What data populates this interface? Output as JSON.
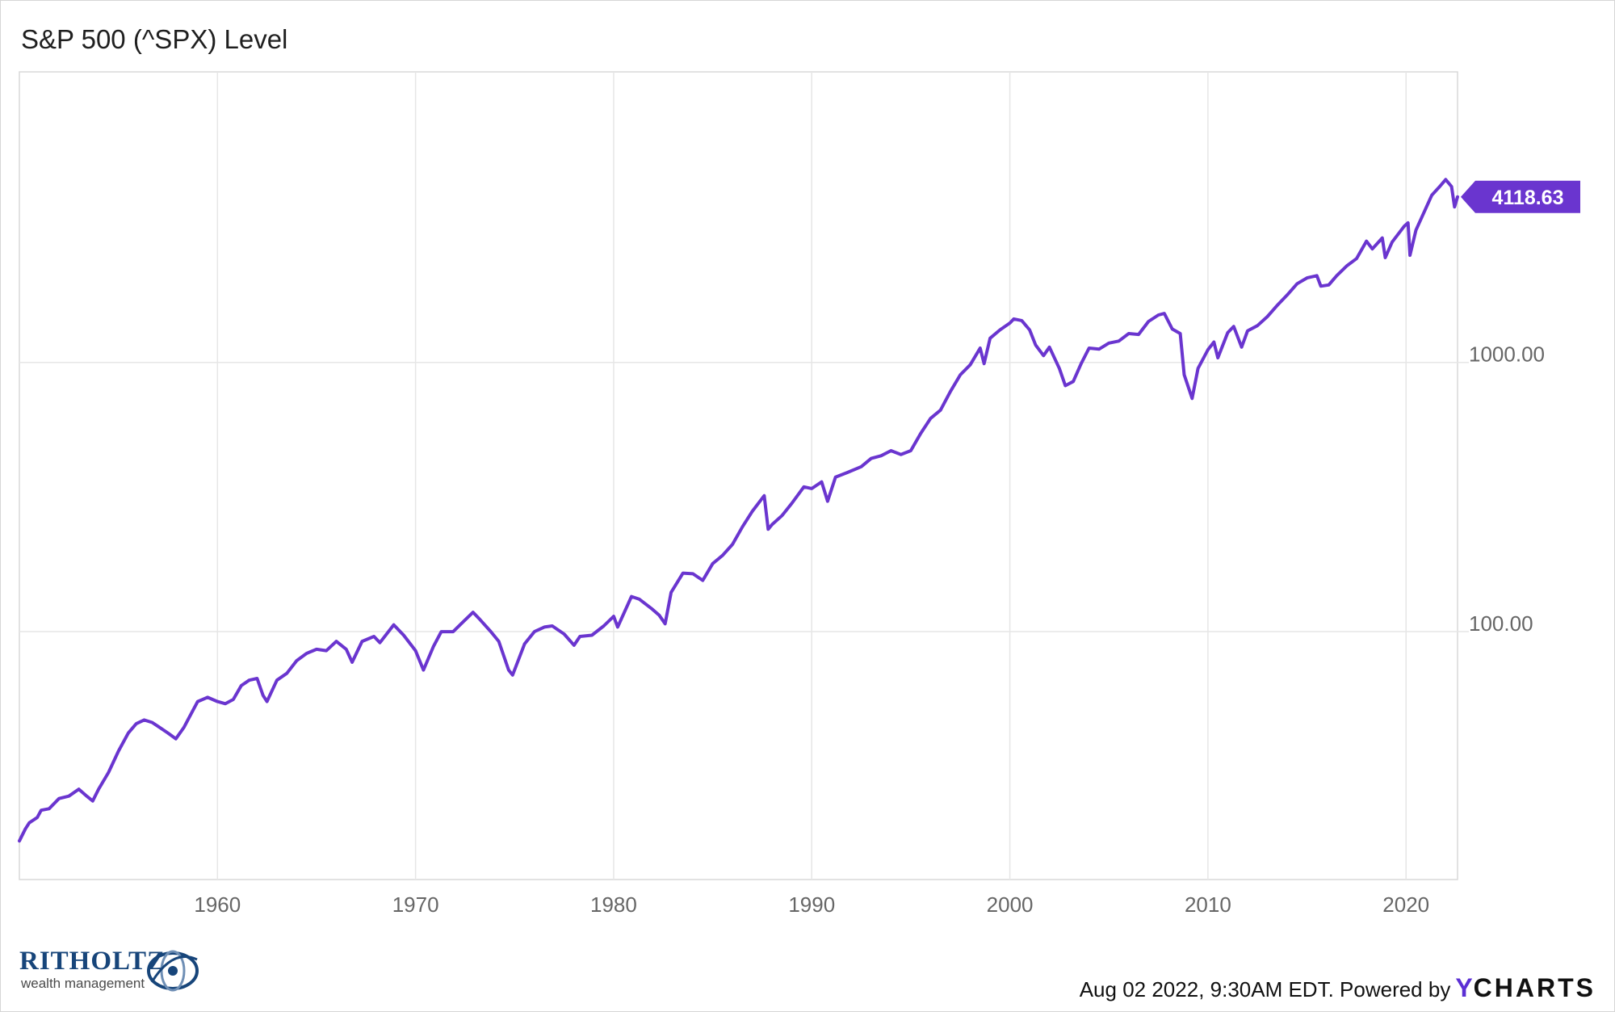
{
  "chart_data": {
    "type": "line",
    "title": "S&P 500 (^SPX) Level",
    "yscale": "log",
    "ylim": [
      12,
      12000
    ],
    "xlim": [
      1950.0,
      2022.6
    ],
    "x_ticks": [
      "1960",
      "1970",
      "1980",
      "1990",
      "2000",
      "2010",
      "2020"
    ],
    "y_ticks": [
      {
        "value": 100,
        "label": "100.00"
      },
      {
        "value": 1000,
        "label": "1000.00"
      }
    ],
    "grid": true,
    "line_color": "#6a35cf",
    "last_value": {
      "value": 4118.63,
      "label": "4118.63"
    },
    "series": [
      {
        "x": [
          1950.0,
          1950.3,
          1950.5,
          1950.9,
          1951.1,
          1951.5,
          1952.0,
          1952.5,
          1953.0,
          1953.4,
          1953.7,
          1954.0,
          1954.5,
          1955.0,
          1955.5,
          1955.9,
          1956.3,
          1956.7,
          1957.0,
          1957.5,
          1957.9,
          1958.3,
          1958.7,
          1959.0,
          1959.5,
          1960.0,
          1960.4,
          1960.8,
          1961.2,
          1961.6,
          1962.0,
          1962.3,
          1962.5,
          1963.0,
          1963.5,
          1964.0,
          1964.5,
          1965.0,
          1965.5,
          1966.0,
          1966.5,
          1966.8,
          1967.3,
          1967.9,
          1968.2,
          1968.9,
          1969.4,
          1970.0,
          1970.4,
          1970.9,
          1971.3,
          1971.9,
          1972.3,
          1972.9,
          1973.2,
          1973.8,
          1974.2,
          1974.7,
          1974.9,
          1975.5,
          1976.0,
          1976.5,
          1976.9,
          1977.5,
          1978.0,
          1978.3,
          1978.9,
          1979.5,
          1980.0,
          1980.2,
          1980.9,
          1981.3,
          1981.9,
          1982.3,
          1982.6,
          1982.9,
          1983.5,
          1984.0,
          1984.5,
          1985.0,
          1985.5,
          1986.0,
          1986.5,
          1987.0,
          1987.6,
          1987.8,
          1988.0,
          1988.5,
          1989.0,
          1989.6,
          1990.0,
          1990.5,
          1990.8,
          1991.2,
          1991.8,
          1992.5,
          1993.0,
          1993.5,
          1994.0,
          1994.5,
          1995.0,
          1995.5,
          1996.0,
          1996.5,
          1997.0,
          1997.5,
          1998.0,
          1998.5,
          1998.7,
          1999.0,
          1999.5,
          2000.0,
          2000.2,
          2000.6,
          2001.0,
          2001.3,
          2001.7,
          2002.0,
          2002.5,
          2002.8,
          2003.2,
          2003.6,
          2004.0,
          2004.5,
          2005.0,
          2005.5,
          2006.0,
          2006.5,
          2007.0,
          2007.5,
          2007.8,
          2008.2,
          2008.6,
          2008.8,
          2009.2,
          2009.5,
          2010.0,
          2010.3,
          2010.5,
          2011.0,
          2011.3,
          2011.7,
          2012.0,
          2012.5,
          2013.0,
          2013.5,
          2014.0,
          2014.5,
          2015.0,
          2015.5,
          2015.7,
          2016.1,
          2016.5,
          2017.0,
          2017.5,
          2018.0,
          2018.3,
          2018.8,
          2018.95,
          2019.3,
          2019.9,
          2020.1,
          2020.2,
          2020.5,
          2020.9,
          2021.3,
          2021.7,
          2022.0,
          2022.3,
          2022.45,
          2022.6
        ],
        "y": [
          16.7,
          18.5,
          19.5,
          20.4,
          21.7,
          22.0,
          24.0,
          24.5,
          26.0,
          24.5,
          23.5,
          26.0,
          30.0,
          36.0,
          42.0,
          45.5,
          47.0,
          46.0,
          44.5,
          42.0,
          40.0,
          44.0,
          50.0,
          55.0,
          57.0,
          55.0,
          54.0,
          56.0,
          63.0,
          66.0,
          67.0,
          58.0,
          55.0,
          66.0,
          70.0,
          78.0,
          83.0,
          86.0,
          85.0,
          92.0,
          86.0,
          77.0,
          92.0,
          96.0,
          91.0,
          106.0,
          97.0,
          85.0,
          72.0,
          88.0,
          100.0,
          100.0,
          107.0,
          118.0,
          112.0,
          100.0,
          92.0,
          72.0,
          69.0,
          90.0,
          100.0,
          104.0,
          105.0,
          98.0,
          89.0,
          96.0,
          97.0,
          105.0,
          114.0,
          104.0,
          135.0,
          132.0,
          122.0,
          115.0,
          107.0,
          140.0,
          165.0,
          164.0,
          155.0,
          179.0,
          192.0,
          211.0,
          245.0,
          280.0,
          320.0,
          240.0,
          250.0,
          270.0,
          300.0,
          345.0,
          340.0,
          360.0,
          305.0,
          375.0,
          390.0,
          410.0,
          440.0,
          450.0,
          470.0,
          455.0,
          470.0,
          545.0,
          620.0,
          665.0,
          780.0,
          900.0,
          980.0,
          1130.0,
          990.0,
          1230.0,
          1320.0,
          1400.0,
          1450.0,
          1430.0,
          1320.0,
          1160.0,
          1060.0,
          1140.0,
          950.0,
          820.0,
          850.0,
          990.0,
          1130.0,
          1120.0,
          1180.0,
          1200.0,
          1280.0,
          1270.0,
          1420.0,
          1500.0,
          1520.0,
          1330.0,
          1280.0,
          900.0,
          735.0,
          950.0,
          1115.0,
          1190.0,
          1040.0,
          1290.0,
          1360.0,
          1140.0,
          1310.0,
          1370.0,
          1480.0,
          1630.0,
          1780.0,
          1960.0,
          2060.0,
          2100.0,
          1920.0,
          1940.0,
          2100.0,
          2280.0,
          2430.0,
          2820.0,
          2640.0,
          2900.0,
          2450.0,
          2800.0,
          3200.0,
          3300.0,
          2500.0,
          3100.0,
          3600.0,
          4180.0,
          4500.0,
          4780.0,
          4500.0,
          3780.0,
          4118.63
        ]
      }
    ]
  },
  "footer": {
    "timestamp": "Aug 02 2022, 9:30AM EDT. Powered by",
    "brand_y": "Y",
    "brand_rest": "CHARTS"
  },
  "logo": {
    "name": "RITHOLTZ",
    "tagline": "wealth management"
  }
}
